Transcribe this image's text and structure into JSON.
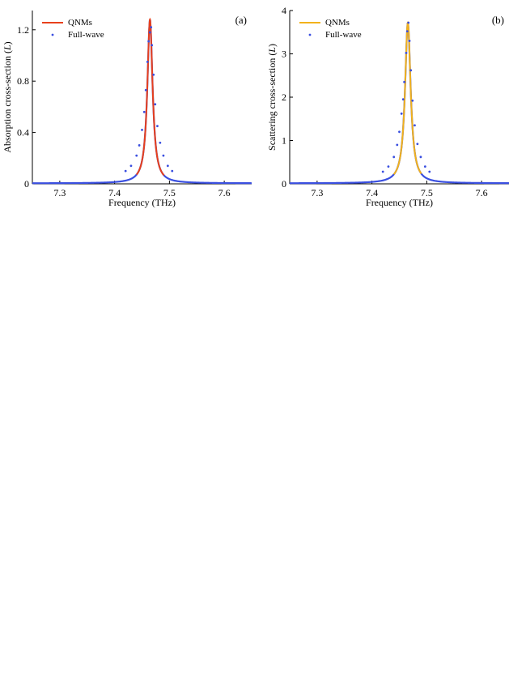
{
  "chart_data": [
    {
      "type": "line",
      "panel_label": "(a)",
      "xlabel": "Frequency (THz)",
      "ylabel_prefix": "Absorption cross-section (",
      "ylabel_unit": "L",
      "ylabel_suffix": ")",
      "xlim": [
        7.25,
        7.65
      ],
      "ylim": [
        0,
        1.35
      ],
      "xticks": [
        7.3,
        7.4,
        7.5,
        7.6
      ],
      "xtick_labels": [
        "7.3",
        "7.4",
        "7.5",
        "7.6"
      ],
      "yticks": [
        0,
        0.4,
        0.8,
        1.2
      ],
      "ytick_labels": [
        "0",
        "0.4",
        "0.8",
        "1.2"
      ],
      "grid": false,
      "legend_position": "top-left",
      "series": [
        {
          "name": "QNMs",
          "style": "line",
          "color": "#e8401c",
          "lorentzian": {
            "peak_x": 7.4645,
            "peak_y": 1.28,
            "half_width": 0.0058,
            "baseline": 0.004
          }
        },
        {
          "name": "Full-wave",
          "style": "points",
          "color": "#3a4fe0",
          "points": [
            [
              7.42,
              0.1
            ],
            [
              7.43,
              0.14
            ],
            [
              7.44,
              0.22
            ],
            [
              7.445,
              0.3
            ],
            [
              7.45,
              0.42
            ],
            [
              7.454,
              0.56
            ],
            [
              7.457,
              0.73
            ],
            [
              7.46,
              0.95
            ],
            [
              7.462,
              1.11
            ],
            [
              7.4645,
              1.18
            ],
            [
              7.4665,
              1.22
            ],
            [
              7.468,
              1.08
            ],
            [
              7.471,
              0.85
            ],
            [
              7.474,
              0.62
            ],
            [
              7.478,
              0.45
            ],
            [
              7.483,
              0.32
            ],
            [
              7.489,
              0.22
            ],
            [
              7.497,
              0.14
            ],
            [
              7.505,
              0.1
            ]
          ],
          "background_curve": {
            "peak_x": 7.4645,
            "peak_y": 1.28,
            "half_width": 0.0058,
            "baseline": 0.004
          }
        }
      ]
    },
    {
      "type": "line",
      "panel_label": "(b)",
      "xlabel": "Frequency (THz)",
      "ylabel_prefix": "Scattering cross-section (",
      "ylabel_unit": "L",
      "ylabel_suffix": ")",
      "xlim": [
        7.25,
        7.65
      ],
      "ylim": [
        0,
        4
      ],
      "xticks": [
        7.3,
        7.4,
        7.5,
        7.6
      ],
      "xtick_labels": [
        "7.3",
        "7.4",
        "7.5",
        "7.6"
      ],
      "yticks": [
        0,
        1,
        2,
        3,
        4
      ],
      "ytick_labels": [
        "0",
        "1",
        "2",
        "3",
        "4"
      ],
      "grid": false,
      "legend_position": "top-left",
      "series": [
        {
          "name": "QNMs",
          "style": "line",
          "color": "#f2b21b",
          "lorentzian": {
            "peak_x": 7.4655,
            "peak_y": 3.72,
            "half_width": 0.0062,
            "baseline": 0.012
          }
        },
        {
          "name": "Full-wave",
          "style": "points",
          "color": "#3a4fe0",
          "points": [
            [
              7.42,
              0.28
            ],
            [
              7.43,
              0.4
            ],
            [
              7.44,
              0.62
            ],
            [
              7.446,
              0.9
            ],
            [
              7.45,
              1.2
            ],
            [
              7.454,
              1.62
            ],
            [
              7.457,
              1.95
            ],
            [
              7.459,
              2.35
            ],
            [
              7.4625,
              3.02
            ],
            [
              7.4645,
              3.52
            ],
            [
              7.4665,
              3.72
            ],
            [
              7.4685,
              3.3
            ],
            [
              7.471,
              2.62
            ],
            [
              7.474,
              1.92
            ],
            [
              7.478,
              1.35
            ],
            [
              7.483,
              0.92
            ],
            [
              7.489,
              0.62
            ],
            [
              7.497,
              0.4
            ],
            [
              7.505,
              0.28
            ]
          ],
          "background_curve": {
            "peak_x": 7.4655,
            "peak_y": 3.72,
            "half_width": 0.0062,
            "baseline": 0.012
          }
        }
      ]
    }
  ]
}
